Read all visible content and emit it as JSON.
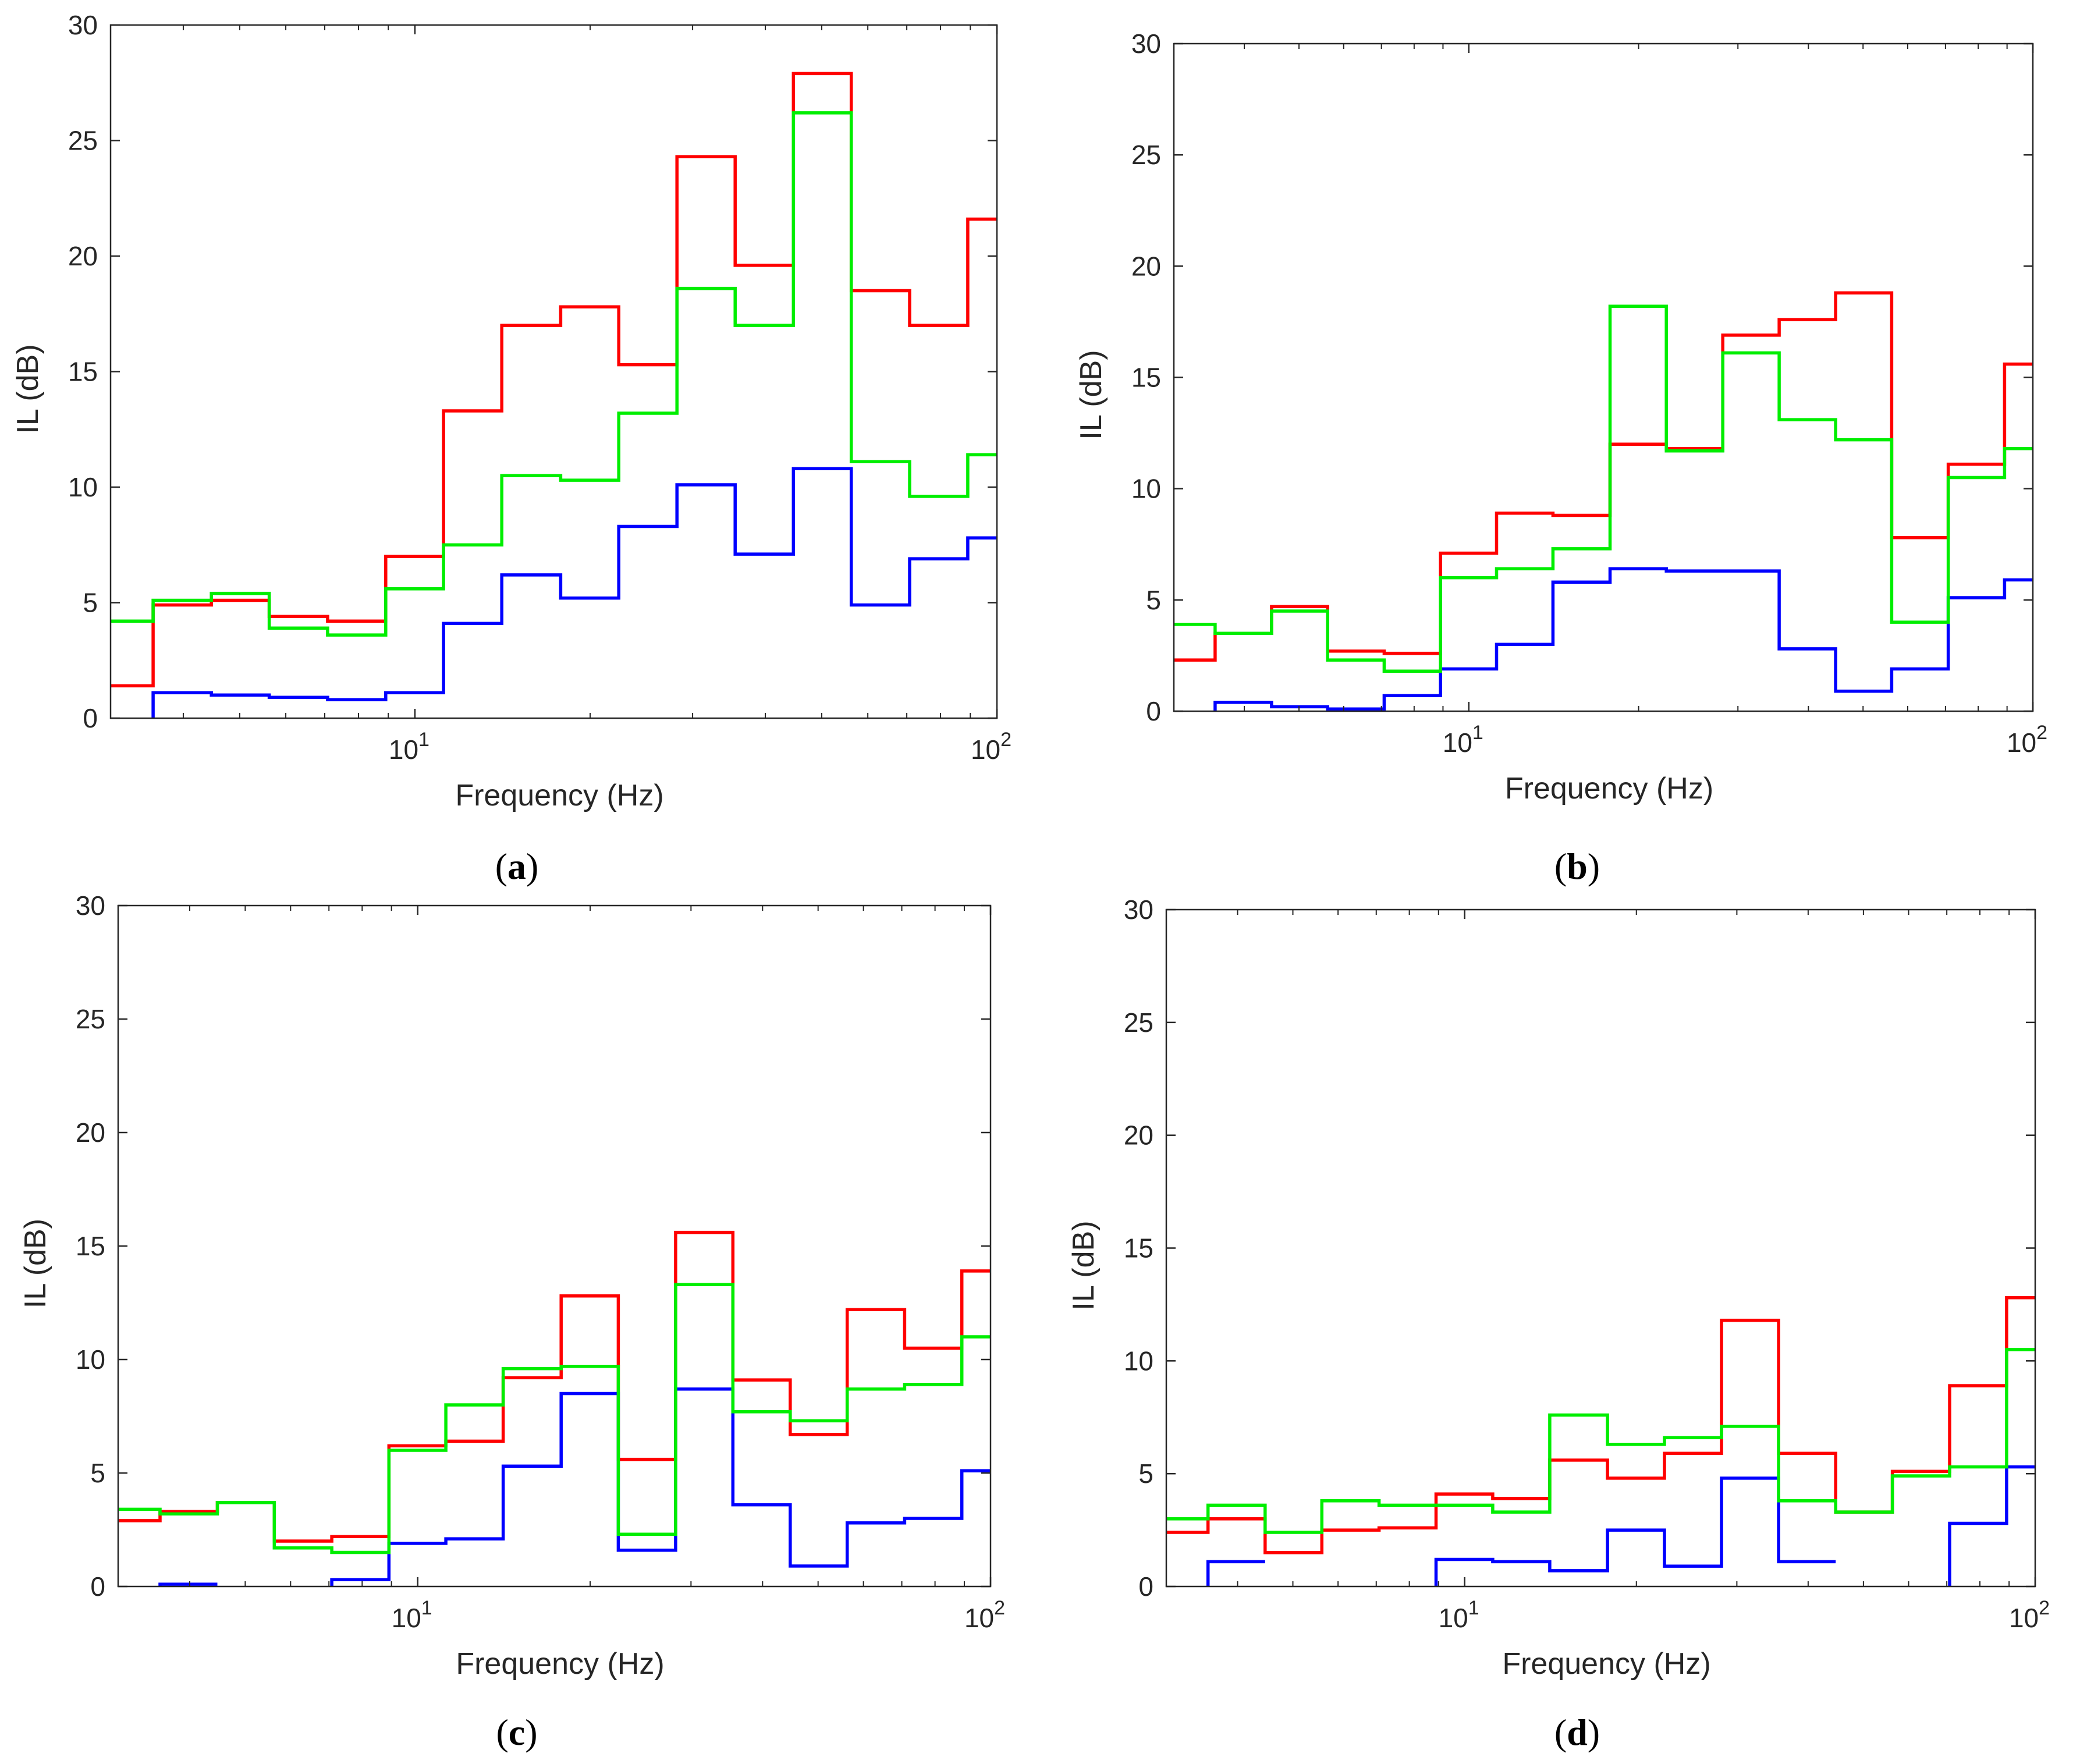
{
  "chart_data": [
    {
      "panel": "a",
      "type": "line",
      "step": "post",
      "xscale": "log",
      "xlim": [
        3,
        100
      ],
      "ylim": [
        0,
        30
      ],
      "xlabel": "Frequency (Hz)",
      "ylabel": "IL (dB)",
      "yticks": [
        "0",
        "5",
        "10",
        "15",
        "20",
        "25",
        "30"
      ],
      "xticks": [
        {
          "base": "10",
          "exp": "1"
        },
        {
          "base": "10",
          "exp": "2"
        }
      ],
      "caption": {
        "open": "(",
        "letter": "a",
        "close": ")"
      },
      "edges": [
        3,
        3.55,
        4.47,
        5.62,
        7.08,
        8.91,
        11.2,
        14.1,
        17.8,
        22.4,
        28.2,
        35.5,
        44.7,
        56.2,
        70.8,
        89.1,
        100
      ],
      "series": [
        {
          "name": "red",
          "color": "#ff0000",
          "values": [
            1.4,
            4.9,
            5.1,
            4.4,
            4.2,
            7.0,
            13.3,
            17.0,
            17.8,
            15.3,
            24.3,
            19.6,
            27.9,
            18.5,
            17.0,
            21.6
          ]
        },
        {
          "name": "blue",
          "color": "#0000ff",
          "start": 1,
          "values": [
            null,
            1.1,
            1.0,
            0.9,
            0.8,
            1.1,
            4.1,
            6.2,
            5.2,
            8.3,
            10.1,
            7.1,
            10.8,
            4.9,
            6.9,
            7.8
          ]
        },
        {
          "name": "green",
          "color": "#00ee00",
          "values": [
            4.2,
            5.1,
            5.4,
            3.9,
            3.6,
            5.6,
            7.5,
            10.5,
            10.3,
            13.2,
            18.6,
            17.0,
            26.2,
            11.1,
            9.6,
            11.4
          ]
        }
      ]
    },
    {
      "panel": "b",
      "type": "line",
      "step": "post",
      "xscale": "log",
      "xlim": [
        3,
        100
      ],
      "ylim": [
        0,
        30
      ],
      "xlabel": "Frequency (Hz)",
      "ylabel": "IL (dB)",
      "yticks": [
        "0",
        "5",
        "10",
        "15",
        "20",
        "25",
        "30"
      ],
      "xticks": [
        {
          "base": "10",
          "exp": "1"
        },
        {
          "base": "10",
          "exp": "2"
        }
      ],
      "caption": {
        "open": "(",
        "letter": "b",
        "close": ")"
      },
      "edges": [
        3,
        3.55,
        4.47,
        5.62,
        7.08,
        8.91,
        11.2,
        14.1,
        17.8,
        22.4,
        28.2,
        35.5,
        44.7,
        56.2,
        70.8,
        89.1,
        100
      ],
      "series": [
        {
          "name": "red",
          "color": "#ff0000",
          "values": [
            2.3,
            3.5,
            4.7,
            2.7,
            2.6,
            7.1,
            8.9,
            8.8,
            12.0,
            11.8,
            16.9,
            17.6,
            18.8,
            7.8,
            11.1,
            15.6
          ]
        },
        {
          "name": "blue",
          "color": "#0000ff",
          "start": 1,
          "values": [
            null,
            0.4,
            0.2,
            0.1,
            0.7,
            1.9,
            3.0,
            5.8,
            6.4,
            6.3,
            6.3,
            2.8,
            0.9,
            1.9,
            5.1,
            5.9
          ]
        },
        {
          "name": "green",
          "color": "#00ee00",
          "values": [
            3.9,
            3.5,
            4.5,
            2.3,
            1.8,
            6.0,
            6.4,
            7.3,
            18.2,
            11.7,
            16.1,
            13.1,
            12.2,
            4.0,
            10.5,
            11.8
          ]
        }
      ]
    },
    {
      "panel": "c",
      "type": "line",
      "step": "post",
      "xscale": "log",
      "xlim": [
        3,
        100
      ],
      "ylim": [
        0,
        30
      ],
      "xlabel": "Frequency (Hz)",
      "ylabel": "IL (dB)",
      "yticks": [
        "0",
        "5",
        "10",
        "15",
        "20",
        "25",
        "30"
      ],
      "xticks": [
        {
          "base": "10",
          "exp": "1"
        },
        {
          "base": "10",
          "exp": "2"
        }
      ],
      "caption": {
        "open": "(",
        "letter": "c",
        "close": ")"
      },
      "edges": [
        3,
        3.55,
        4.47,
        5.62,
        7.08,
        8.91,
        11.2,
        14.1,
        17.8,
        22.4,
        28.2,
        35.5,
        44.7,
        56.2,
        70.8,
        89.1,
        100
      ],
      "series": [
        {
          "name": "red",
          "color": "#ff0000",
          "values": [
            2.9,
            3.3,
            3.7,
            2.0,
            2.2,
            6.2,
            6.4,
            9.2,
            12.8,
            5.6,
            15.6,
            9.1,
            6.7,
            12.2,
            10.5,
            13.9
          ]
        },
        {
          "name": "blue",
          "color": "#0000ff",
          "start": 1,
          "values": [
            null,
            0.1,
            null,
            null,
            0.3,
            1.9,
            2.1,
            5.3,
            8.5,
            1.6,
            8.7,
            3.6,
            0.9,
            2.8,
            3.0,
            5.1
          ]
        },
        {
          "name": "green",
          "color": "#00ee00",
          "values": [
            3.4,
            3.2,
            3.7,
            1.7,
            1.5,
            6.0,
            8.0,
            9.6,
            9.7,
            2.3,
            13.3,
            7.7,
            7.3,
            8.7,
            8.9,
            11.0
          ]
        }
      ]
    },
    {
      "panel": "d",
      "type": "line",
      "step": "post",
      "xscale": "log",
      "xlim": [
        3,
        100
      ],
      "ylim": [
        0,
        30
      ],
      "xlabel": "Frequency (Hz)",
      "ylabel": "IL (dB)",
      "yticks": [
        "0",
        "5",
        "10",
        "15",
        "20",
        "25",
        "30"
      ],
      "xticks": [
        {
          "base": "10",
          "exp": "1"
        },
        {
          "base": "10",
          "exp": "2"
        }
      ],
      "caption": {
        "open": "(",
        "letter": "d",
        "close": ")"
      },
      "edges": [
        3,
        3.55,
        4.47,
        5.62,
        7.08,
        8.91,
        11.2,
        14.1,
        17.8,
        22.4,
        28.2,
        35.5,
        44.7,
        56.2,
        70.8,
        89.1,
        100
      ],
      "series": [
        {
          "name": "red",
          "color": "#ff0000",
          "values": [
            2.4,
            3.0,
            1.5,
            2.5,
            2.6,
            4.1,
            3.9,
            5.6,
            4.8,
            5.9,
            11.8,
            5.9,
            3.3,
            5.1,
            8.9,
            12.8
          ]
        },
        {
          "name": "blue",
          "color": "#0000ff",
          "start": 1,
          "values": [
            null,
            1.1,
            null,
            null,
            null,
            1.2,
            1.1,
            0.7,
            2.5,
            0.9,
            4.8,
            1.1,
            null,
            null,
            2.8,
            5.3
          ]
        },
        {
          "name": "green",
          "color": "#00ee00",
          "values": [
            3.0,
            3.6,
            2.4,
            3.8,
            3.6,
            3.6,
            3.3,
            7.6,
            6.3,
            6.6,
            7.1,
            3.8,
            3.3,
            4.9,
            5.3,
            10.5
          ]
        }
      ]
    }
  ]
}
